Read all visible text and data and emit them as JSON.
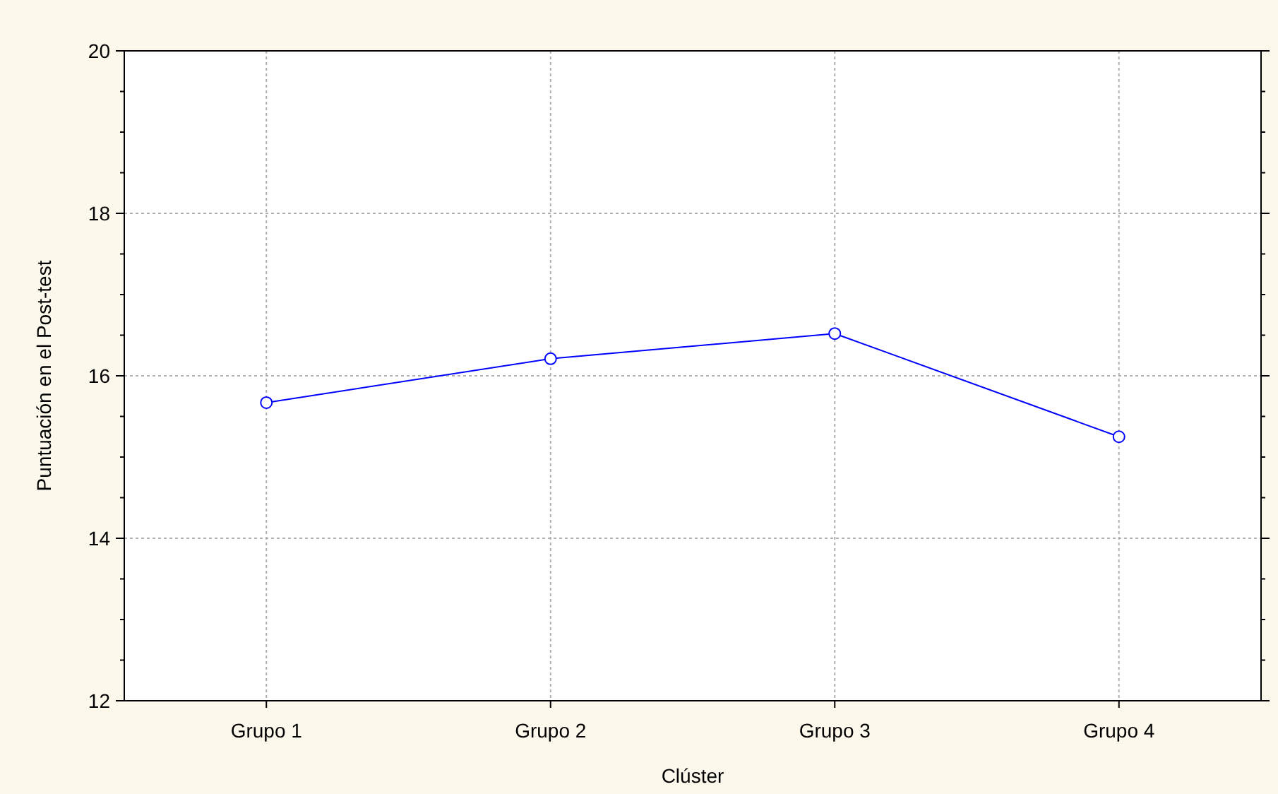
{
  "chart_data": {
    "type": "line",
    "xlabel": "Clúster",
    "ylabel": "Puntuación en el Post-test",
    "categories": [
      "Grupo 1",
      "Grupo 2",
      "Grupo 3",
      "Grupo 4"
    ],
    "series": [
      {
        "color": "#0000ff",
        "values": [
          15.67,
          16.21,
          16.52,
          15.25
        ]
      }
    ],
    "ylim": [
      12,
      20
    ],
    "yticks": [
      12,
      {
        "value": 12.5,
        "label": null
      },
      {
        "value": 13,
        "label": null
      },
      {
        "value": 13.5,
        "label": null
      },
      14,
      {
        "value": 14.5,
        "label": null
      },
      {
        "value": 15,
        "label": null
      },
      {
        "value": 15.5,
        "label": null
      },
      16,
      {
        "value": 16.5,
        "label": null
      },
      {
        "value": 17,
        "label": null
      },
      {
        "value": 17.5,
        "label": null
      },
      18,
      {
        "value": 18.5,
        "label": null
      },
      {
        "value": 19,
        "label": null
      },
      {
        "value": 19.5,
        "label": null
      },
      20
    ],
    "grid": true,
    "marker": "circle",
    "line_style": "solid"
  }
}
